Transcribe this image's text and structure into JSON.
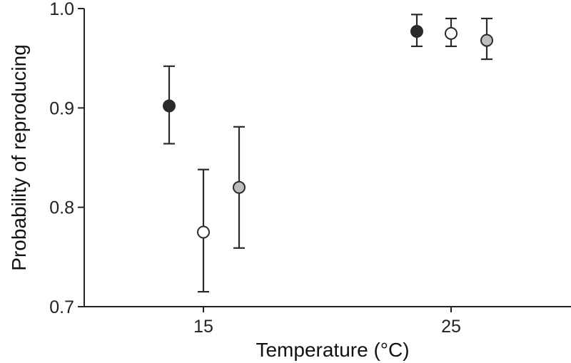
{
  "chart_data": {
    "type": "scatter",
    "title": "",
    "xlabel": "Temperature (°C)",
    "ylabel": "Probability of reproducing",
    "x_categories": [
      "15",
      "25"
    ],
    "ylim": [
      0.7,
      1.0
    ],
    "yticks": [
      0.7,
      0.8,
      0.9,
      1.0
    ],
    "ytick_labels": [
      "0.7",
      "0.8",
      "0.9",
      "1.0"
    ],
    "grid": false,
    "legend": null,
    "series": [
      {
        "fill": "#2a2a2a",
        "points": [
          {
            "x": "15",
            "y": 0.902,
            "lower": 0.864,
            "upper": 0.942
          },
          {
            "x": "25",
            "y": 0.977,
            "lower": 0.962,
            "upper": 0.994
          }
        ]
      },
      {
        "fill": "#ffffff",
        "points": [
          {
            "x": "15",
            "y": 0.775,
            "lower": 0.715,
            "upper": 0.838
          },
          {
            "x": "25",
            "y": 0.975,
            "lower": 0.962,
            "upper": 0.99
          }
        ]
      },
      {
        "fill": "#bdbdbd",
        "points": [
          {
            "x": "15",
            "y": 0.82,
            "lower": 0.759,
            "upper": 0.881
          },
          {
            "x": "25",
            "y": 0.968,
            "lower": 0.949,
            "upper": 0.99
          }
        ]
      }
    ]
  }
}
